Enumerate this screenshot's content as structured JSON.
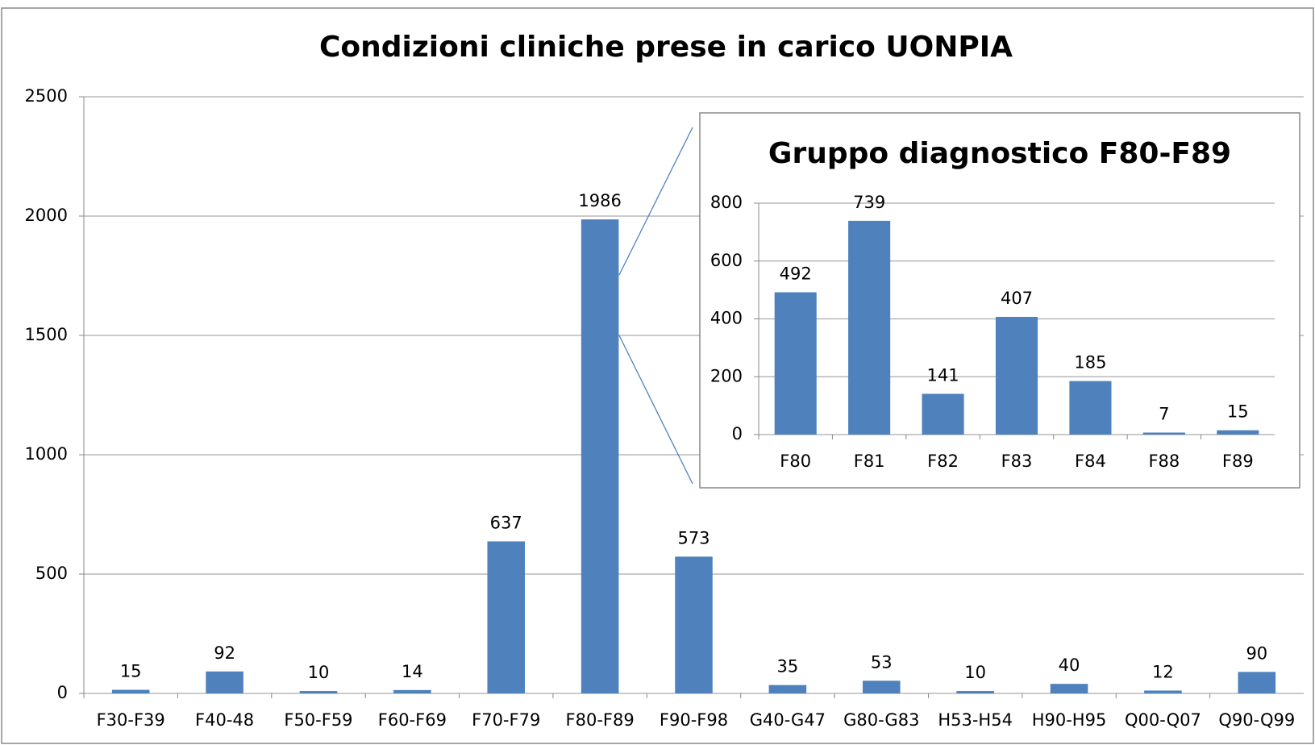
{
  "chart_data": [
    {
      "type": "bar",
      "title": "Condizioni cliniche prese in carico UONPIA",
      "categories": [
        "F30-F39",
        "F40-48",
        "F50-F59",
        "F60-F69",
        "F70-F79",
        "F80-F89",
        "F90-F98",
        "G40-G47",
        "G80-G83",
        "H53-H54",
        "H90-H95",
        "Q00-Q07",
        "Q90-Q99"
      ],
      "values": [
        15,
        92,
        10,
        14,
        637,
        1986,
        573,
        35,
        53,
        10,
        40,
        12,
        90
      ],
      "color": "#4f81bd",
      "ylim": [
        0,
        2500
      ],
      "yticks": [
        0,
        500,
        1000,
        1500,
        2000,
        2500
      ],
      "grid": true
    },
    {
      "type": "bar",
      "title": "Gruppo diagnostico F80-F89",
      "categories": [
        "F80",
        "F81",
        "F82",
        "F83",
        "F84",
        "F88",
        "F89"
      ],
      "values": [
        492,
        739,
        141,
        407,
        185,
        7,
        15
      ],
      "color": "#4f81bd",
      "ylim": [
        0,
        800
      ],
      "yticks": [
        0,
        200,
        400,
        600,
        800
      ],
      "grid": true
    }
  ]
}
